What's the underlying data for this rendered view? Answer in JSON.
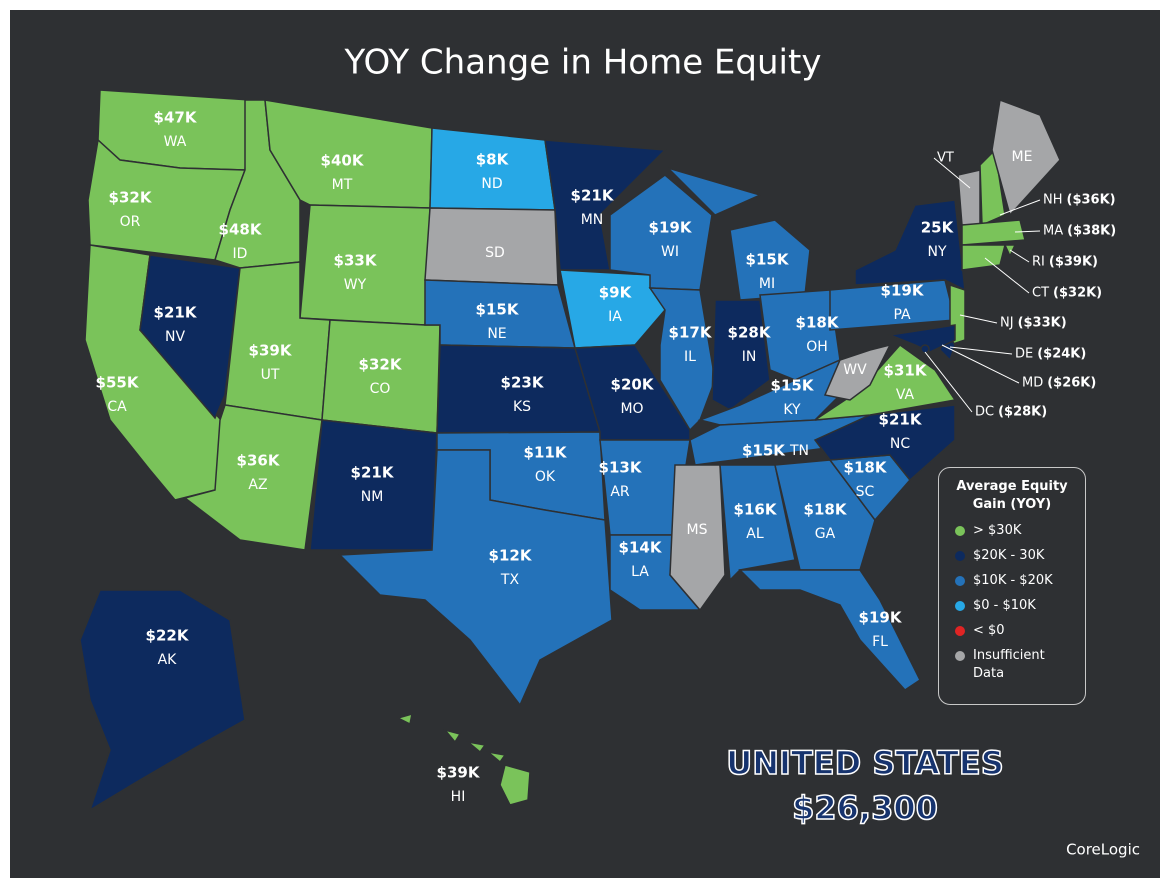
{
  "title": "YOY Change in Home Equity",
  "states": [
    {
      "label": "WA",
      "value": "$47K",
      "color": "#7ac35a"
    },
    {
      "label": "OR",
      "value": "$32K",
      "color": "#7ac35a"
    },
    {
      "label": "CA",
      "value": "$55K",
      "color": "#7ac35a"
    },
    {
      "label": "NV",
      "value": "$21K",
      "color": "#0d2a5e"
    },
    {
      "label": "ID",
      "value": "$48K",
      "color": "#7ac35a"
    },
    {
      "label": "MT",
      "value": "$40K",
      "color": "#7ac35a"
    },
    {
      "label": "WY",
      "value": "$33K",
      "color": "#7ac35a"
    },
    {
      "label": "UT",
      "value": "$39K",
      "color": "#7ac35a"
    },
    {
      "label": "CO",
      "value": "$32K",
      "color": "#7ac35a"
    },
    {
      "label": "AZ",
      "value": "$36K",
      "color": "#7ac35a"
    },
    {
      "label": "NM",
      "value": "$21K",
      "color": "#0d2a5e"
    },
    {
      "label": "ND",
      "value": "$8K",
      "color": "#27a8e6"
    },
    {
      "label": "SD",
      "color": "#a5a6a8"
    },
    {
      "label": "NE",
      "value": "$15K",
      "color": "#2472b9"
    },
    {
      "label": "KS",
      "value": "$23K",
      "color": "#0d2a5e"
    },
    {
      "label": "OK",
      "value": "$11K",
      "color": "#2472b9"
    },
    {
      "label": "TX",
      "value": "$12K",
      "color": "#2472b9"
    },
    {
      "label": "MN",
      "value": "$21K",
      "color": "#0d2a5e"
    },
    {
      "label": "IA",
      "value": "$9K",
      "color": "#27a8e6"
    },
    {
      "label": "MO",
      "value": "$20K",
      "color": "#0d2a5e"
    },
    {
      "label": "AR",
      "value": "$13K",
      "color": "#2472b9"
    },
    {
      "label": "LA",
      "value": "$14K",
      "color": "#2472b9"
    },
    {
      "label": "WI",
      "value": "$19K",
      "color": "#2472b9"
    },
    {
      "label": "IL",
      "value": "$17K",
      "color": "#2472b9"
    },
    {
      "label": "MI",
      "value": "$15K",
      "color": "#2472b9"
    },
    {
      "label": "IN",
      "value": "$28K",
      "color": "#0d2a5e"
    },
    {
      "label": "OH",
      "value": "$18K",
      "color": "#2472b9"
    },
    {
      "label": "KY",
      "value": "$15K",
      "color": "#2472b9"
    },
    {
      "label": "TN",
      "value": "$15K",
      "color": "#2472b9"
    },
    {
      "label": "MS",
      "color": "#a5a6a8"
    },
    {
      "label": "AL",
      "value": "$16K",
      "color": "#2472b9"
    },
    {
      "label": "GA",
      "value": "$18K",
      "color": "#2472b9"
    },
    {
      "label": "FL",
      "value": "$19K",
      "color": "#2472b9"
    },
    {
      "label": "SC",
      "value": "$18K",
      "color": "#2472b9"
    },
    {
      "label": "NC",
      "value": "$21K",
      "color": "#0d2a5e"
    },
    {
      "label": "VA",
      "value": "$31K",
      "color": "#7ac35a"
    },
    {
      "label": "WV",
      "color": "#a5a6a8"
    },
    {
      "label": "PA",
      "value": "$19K",
      "color": "#2472b9"
    },
    {
      "label": "NY",
      "value": "25K",
      "color": "#0d2a5e"
    },
    {
      "label": "NJ",
      "value": "($33K)",
      "color": "#7ac35a"
    },
    {
      "label": "DE",
      "value": "($24K)",
      "color": "#0d2a5e"
    },
    {
      "label": "MD",
      "value": "($26K)",
      "color": "#0d2a5e"
    },
    {
      "label": "DC",
      "value": "($28K)",
      "color": "#0d2a5e"
    },
    {
      "label": "VT",
      "color": "#a5a6a8"
    },
    {
      "label": "NH",
      "value": "($36K)",
      "color": "#7ac35a"
    },
    {
      "label": "ME",
      "color": "#a5a6a8"
    },
    {
      "label": "MA",
      "value": "($38K)",
      "color": "#7ac35a"
    },
    {
      "label": "RI",
      "value": "($39K)",
      "color": "#7ac35a"
    },
    {
      "label": "CT",
      "value": "($32K)",
      "color": "#7ac35a"
    },
    {
      "label": "AK",
      "value": "$22K",
      "color": "#0d2a5e"
    },
    {
      "label": "HI",
      "value": "$39K",
      "color": "#7ac35a"
    }
  ],
  "legend": {
    "title": "Average Equity Gain (YOY)",
    "items": [
      {
        "label": "> $30K",
        "color": "#7ac35a"
      },
      {
        "label": "$20K - 30K",
        "color": "#0d2a5e"
      },
      {
        "label": "$10K - $20K",
        "color": "#2472b9"
      },
      {
        "label": "$0 - $10K",
        "color": "#27a8e6"
      },
      {
        "label": "< $0",
        "color": "#e02424"
      },
      {
        "label": "Insufficient Data",
        "color": "#a5a6a8"
      }
    ]
  },
  "total": {
    "label": "UNITED STATES",
    "value": "$26,300"
  },
  "source": "CoreLogic"
}
